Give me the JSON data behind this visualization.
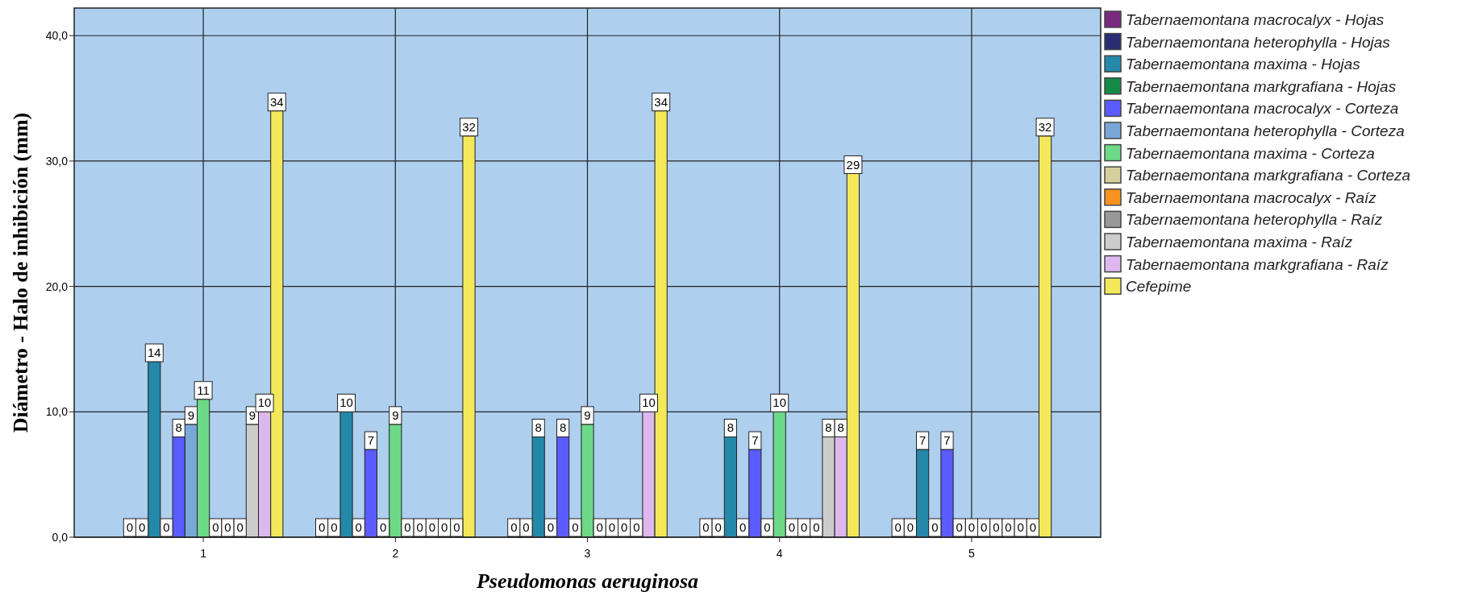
{
  "chart_data": {
    "type": "bar",
    "xlabel": "Pseudomonas aeruginosa",
    "ylabel": "Diámetro - Halo de inhibición (mm)",
    "categories": [
      "1",
      "2",
      "3",
      "4",
      "5"
    ],
    "ylim": [
      0,
      42.2
    ],
    "yticks": [
      {
        "value": 0,
        "label": "0,0"
      },
      {
        "value": 10,
        "label": "10,0"
      },
      {
        "value": 20,
        "label": "20,0"
      },
      {
        "value": 30,
        "label": "30,0"
      },
      {
        "value": 40,
        "label": "40,0"
      }
    ],
    "grid": true,
    "legend": "right",
    "data_labels": true,
    "series": [
      {
        "name": "Tabernaemontana macrocalyx - Hojas",
        "color": "#7a2a7f",
        "values": [
          0,
          0,
          0,
          0,
          0
        ]
      },
      {
        "name": "Tabernaemontana heterophylla - Hojas",
        "color": "#2a2d72",
        "values": [
          0,
          0,
          0,
          0,
          0
        ]
      },
      {
        "name": "Tabernaemontana maxima - Hojas",
        "color": "#2488a8",
        "values": [
          14,
          10,
          8,
          8,
          7
        ]
      },
      {
        "name": "Tabernaemontana markgrafiana - Hojas",
        "color": "#148a47",
        "values": [
          0,
          0,
          0,
          0,
          0
        ]
      },
      {
        "name": "Tabernaemontana macrocalyx - Corteza",
        "color": "#5b5cff",
        "values": [
          8,
          7,
          8,
          7,
          7
        ]
      },
      {
        "name": "Tabernaemontana heterophylla - Corteza",
        "color": "#79a8d8",
        "values": [
          9,
          0,
          0,
          0,
          0
        ]
      },
      {
        "name": "Tabernaemontana maxima - Corteza",
        "color": "#6cd987",
        "values": [
          11,
          9,
          9,
          10,
          0
        ]
      },
      {
        "name": "Tabernaemontana markgrafiana - Corteza",
        "color": "#d5cf9b",
        "values": [
          0,
          0,
          0,
          0,
          0
        ]
      },
      {
        "name": "Tabernaemontana macrocalyx - Raíz",
        "color": "#f7931e",
        "values": [
          0,
          0,
          0,
          0,
          0
        ]
      },
      {
        "name": "Tabernaemontana heterophylla - Raíz",
        "color": "#999999",
        "values": [
          0,
          0,
          0,
          0,
          0
        ]
      },
      {
        "name": "Tabernaemontana maxima - Raíz",
        "color": "#cccccc",
        "values": [
          9,
          0,
          0,
          8,
          0
        ]
      },
      {
        "name": "Tabernaemontana markgrafiana - Raíz",
        "color": "#ddb8ee",
        "values": [
          10,
          0,
          10,
          8,
          0
        ]
      },
      {
        "name": "Cefepime",
        "color": "#f3e85a",
        "values": [
          34,
          32,
          34,
          29,
          32
        ]
      }
    ]
  }
}
